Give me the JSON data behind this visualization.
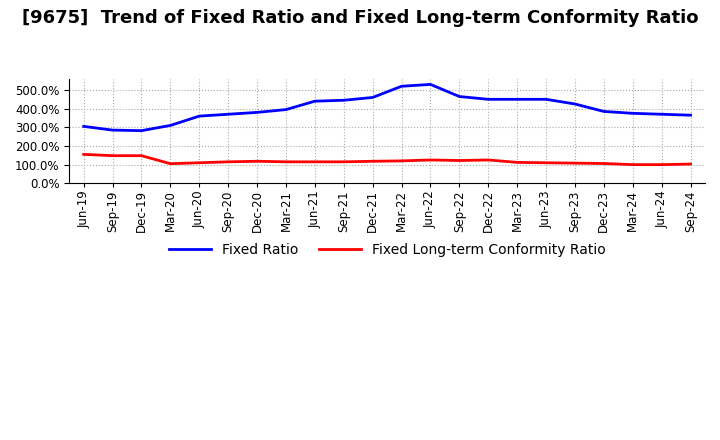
{
  "title": "[9675]  Trend of Fixed Ratio and Fixed Long-term Conformity Ratio",
  "x_labels": [
    "Jun-19",
    "Sep-19",
    "Dec-19",
    "Mar-20",
    "Jun-20",
    "Sep-20",
    "Dec-20",
    "Mar-21",
    "Jun-21",
    "Sep-21",
    "Dec-21",
    "Mar-22",
    "Jun-22",
    "Sep-22",
    "Dec-22",
    "Mar-23",
    "Jun-23",
    "Sep-23",
    "Dec-23",
    "Mar-24",
    "Jun-24",
    "Sep-24"
  ],
  "fixed_ratio": [
    305,
    285,
    282,
    310,
    360,
    370,
    380,
    395,
    440,
    445,
    460,
    520,
    530,
    465,
    450,
    450,
    450,
    425,
    385,
    375,
    370,
    365
  ],
  "fixed_lt_ratio": [
    155,
    148,
    148,
    105,
    110,
    115,
    118,
    115,
    115,
    115,
    118,
    120,
    125,
    122,
    125,
    112,
    110,
    108,
    106,
    100,
    100,
    103
  ],
  "fixed_ratio_color": "#0000FF",
  "fixed_lt_ratio_color": "#FF0000",
  "background_color": "#FFFFFF",
  "grid_color": "#AAAAAA",
  "ylim_min": 0,
  "ylim_max": 560,
  "ytick_values": [
    0,
    100,
    200,
    300,
    400,
    500
  ],
  "legend_fixed_ratio": "Fixed Ratio",
  "legend_fixed_lt_ratio": "Fixed Long-term Conformity Ratio",
  "title_fontsize": 13,
  "axis_fontsize": 8.5,
  "legend_fontsize": 10
}
